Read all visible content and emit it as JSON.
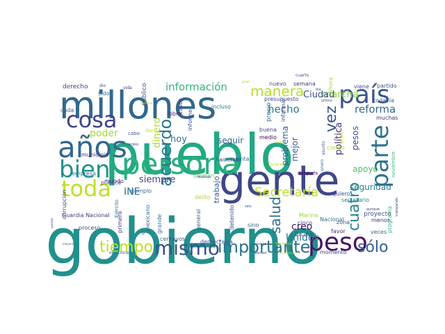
{
  "wordcloud": {
    "words": [
      {
        "text": "gobierno",
        "color": "#21908d"
      },
      {
        "text": "pueblo",
        "color": "#22a884"
      },
      {
        "text": "gente",
        "color": "#3f4788"
      },
      {
        "text": "millones",
        "color": "#31688e"
      },
      {
        "text": "persona",
        "color": "#2ab07f"
      },
      {
        "text": "país",
        "color": "#39558c"
      },
      {
        "text": "parte",
        "color": "#2c728e"
      },
      {
        "text": "años",
        "color": "#31678e"
      },
      {
        "text": "bien",
        "color": "#21908d"
      },
      {
        "text": "cosa",
        "color": "#404588"
      },
      {
        "text": "toda",
        "color": "#c0df25"
      },
      {
        "text": "peso",
        "color": "#471365"
      },
      {
        "text": "mismo",
        "color": "#3b518b"
      },
      {
        "text": "importante",
        "color": "#2c728e"
      },
      {
        "text": "tiempo",
        "color": "#bddf26"
      },
      {
        "text": "sólo",
        "color": "#33628d"
      },
      {
        "text": "manera",
        "color": "#b5de2b"
      },
      {
        "text": "acuerdo",
        "color": "#2a768e"
      },
      {
        "text": "vez",
        "color": "#3a548c"
      },
      {
        "text": "Secretaría",
        "color": "#c2df23"
      },
      {
        "text": "salud",
        "color": "#2e6e8e"
      },
      {
        "text": "cuatro",
        "color": "#24878e"
      },
      {
        "text": "información",
        "color": "#31b57b"
      },
      {
        "text": "reforma",
        "color": "#31678e"
      },
      {
        "text": "hecho",
        "color": "#2a788e"
      },
      {
        "text": "marcha",
        "color": "#8fd744"
      },
      {
        "text": "política",
        "color": "#472a7a"
      },
      {
        "text": "problema",
        "color": "#33628d"
      },
      {
        "text": "creo",
        "color": "#471365"
      },
      {
        "text": "Unidos",
        "color": "#2c728e"
      },
      {
        "text": "Ciudad",
        "color": "#3d4d8a"
      },
      {
        "text": "poder",
        "color": "#a0da39"
      },
      {
        "text": "dinero",
        "color": "#addc30"
      },
      {
        "text": "hoy",
        "color": "#2a788e"
      },
      {
        "text": "siempre",
        "color": "#3f4788"
      },
      {
        "text": "INE",
        "color": "#2d718e"
      },
      {
        "text": "seguridad",
        "color": "#26828e"
      },
      {
        "text": "apoyo",
        "color": "#4ac16d"
      },
      {
        "text": "mejor",
        "color": "#365d8d"
      },
      {
        "text": "pesos",
        "color": "#3d4e8a"
      },
      {
        "text": "seguir",
        "color": "#33638d"
      },
      {
        "text": "trabajo",
        "color": "#365c8d"
      },
      {
        "text": "derecho",
        "color": "#404688"
      },
      {
        "text": "sido",
        "color": "#2f6c8e"
      },
      {
        "text": "municipio",
        "color": "#472c7a"
      },
      {
        "text": "empresa",
        "color": "#2a788e"
      },
      {
        "text": "público",
        "color": "#3b528b"
      },
      {
        "text": "cada",
        "color": "#33638d"
      },
      {
        "text": "mundo",
        "color": "#481f70"
      },
      {
        "text": "pública",
        "color": "#38588c"
      },
      {
        "text": "ejemplo",
        "color": "#31688e"
      },
      {
        "text": "haciendo",
        "color": "#3b518b"
      },
      {
        "text": "cuenta",
        "color": "#2d708e"
      },
      {
        "text": "quieren",
        "color": "#6ece58"
      },
      {
        "text": "buena",
        "color": "#3f4889"
      },
      {
        "text": "medio",
        "color": "#440154"
      },
      {
        "text": "precio",
        "color": "#2d718e"
      },
      {
        "text": "incluso",
        "color": "#2c738e"
      },
      {
        "text": "informe",
        "color": "#3d4d8a"
      },
      {
        "text": "obra",
        "color": "#481d6f"
      },
      {
        "text": "casos",
        "color": "#46337f"
      },
      {
        "text": "nuevo",
        "color": "#38598c"
      },
      {
        "text": "semana",
        "color": "#453882"
      },
      {
        "text": "presupuesto",
        "color": "#3e4989"
      },
      {
        "text": "informar",
        "color": "#3b518b"
      },
      {
        "text": "ahora",
        "color": "#a5db36"
      },
      {
        "text": "viene",
        "color": "#3c4f8a"
      },
      {
        "text": "partido",
        "color": "#3a548c"
      },
      {
        "text": "todavía",
        "color": "#38598c"
      },
      {
        "text": "muchas",
        "color": "#46307e"
      },
      {
        "text": "cierto",
        "color": "#b2dd2d"
      },
      {
        "text": "Nacional",
        "color": "#2c738e"
      },
      {
        "text": "secretario",
        "color": "#25848e"
      },
      {
        "text": "noviembre",
        "color": "#38b977"
      },
      {
        "text": "quiero",
        "color": "#3f4788"
      },
      {
        "text": "zona",
        "color": "#3c4f8a"
      },
      {
        "text": "proyecto",
        "color": "#3b518b"
      },
      {
        "text": "veces",
        "color": "#2d708e"
      },
      {
        "text": "menos",
        "color": "#472e7c"
      },
      {
        "text": "Marina",
        "color": "#8fd744"
      },
      {
        "text": "cinco",
        "color": "#3e4989"
      },
      {
        "text": "Yucatán",
        "color": "#375b8d"
      },
      {
        "text": "sino",
        "color": "#33638d"
      },
      {
        "text": "favor",
        "color": "#46327e"
      },
      {
        "text": "momento",
        "color": "#3e4a89"
      },
      {
        "text": "programa",
        "color": "#31b57b"
      },
      {
        "text": "democracia",
        "color": "#3b528b"
      },
      {
        "text": "centavos",
        "color": "#38598c"
      },
      {
        "text": "mexicano",
        "color": "#2f6b8e"
      },
      {
        "text": "grande",
        "color": "#2c738e"
      },
      {
        "text": "general",
        "color": "#31668e"
      },
      {
        "text": "detenido",
        "color": "#3e4989"
      },
      {
        "text": "proceso",
        "color": "#3d4e8a"
      },
      {
        "text": "primera",
        "color": "#46327e"
      },
      {
        "text": "corrupción",
        "color": "#3b528b"
      },
      {
        "text": "Guardia Nacional",
        "color": "#453781"
      },
      {
        "text": "después",
        "color": "#440154"
      },
      {
        "text": "delito",
        "color": "#a2da37"
      },
      {
        "text": "cabo",
        "color": "#3b528b"
      },
      {
        "text": "dar",
        "color": "#b2dd2d"
      },
      {
        "text": "cuarto",
        "color": "#3b518b"
      },
      {
        "text": "enero",
        "color": "#2e6d8e"
      },
      {
        "text": "Quieren",
        "color": "#b5de2b"
      },
      {
        "text": "asunto",
        "color": "#3d4e8a"
      },
      {
        "text": "grupo",
        "color": "#b8de29"
      },
      {
        "text": "Muchas",
        "color": "#3f4788"
      },
      {
        "text": "ir",
        "color": "#31688e"
      },
      {
        "text": "dio",
        "color": "#3b518b"
      },
      {
        "text": "vida",
        "color": "#46327e"
      },
      {
        "text": "gran",
        "color": "#b5de2b"
      },
      {
        "text": "iba",
        "color": "#3b518b"
      },
      {
        "text": "último",
        "color": "#3e4989"
      },
      {
        "text": "familia",
        "color": "#b2dd2d"
      },
      {
        "text": "cambio",
        "color": "#3e4989"
      },
      {
        "text": "seis",
        "color": "#3b518b"
      },
      {
        "text": "aunque",
        "color": "#46327e"
      },
      {
        "text": "trabajando",
        "color": "#3e4989"
      },
      {
        "text": "Ejército",
        "color": "#2c728e"
      },
      {
        "text": "pasado",
        "color": "#3d4e8a"
      },
      {
        "text": "mayoría",
        "color": "#3b518b"
      },
      {
        "text": "elecciones",
        "color": "#2c738e"
      },
      {
        "text": "nunca",
        "color": "#3e4989"
      },
      {
        "text": "Siguiente",
        "color": "#b2dd2d"
      },
      {
        "text": "verdad",
        "color": "#3b518b"
      },
      {
        "text": "transformación",
        "color": "#b5de2b"
      },
      {
        "text": "sean",
        "color": "#b8de29"
      }
    ]
  }
}
